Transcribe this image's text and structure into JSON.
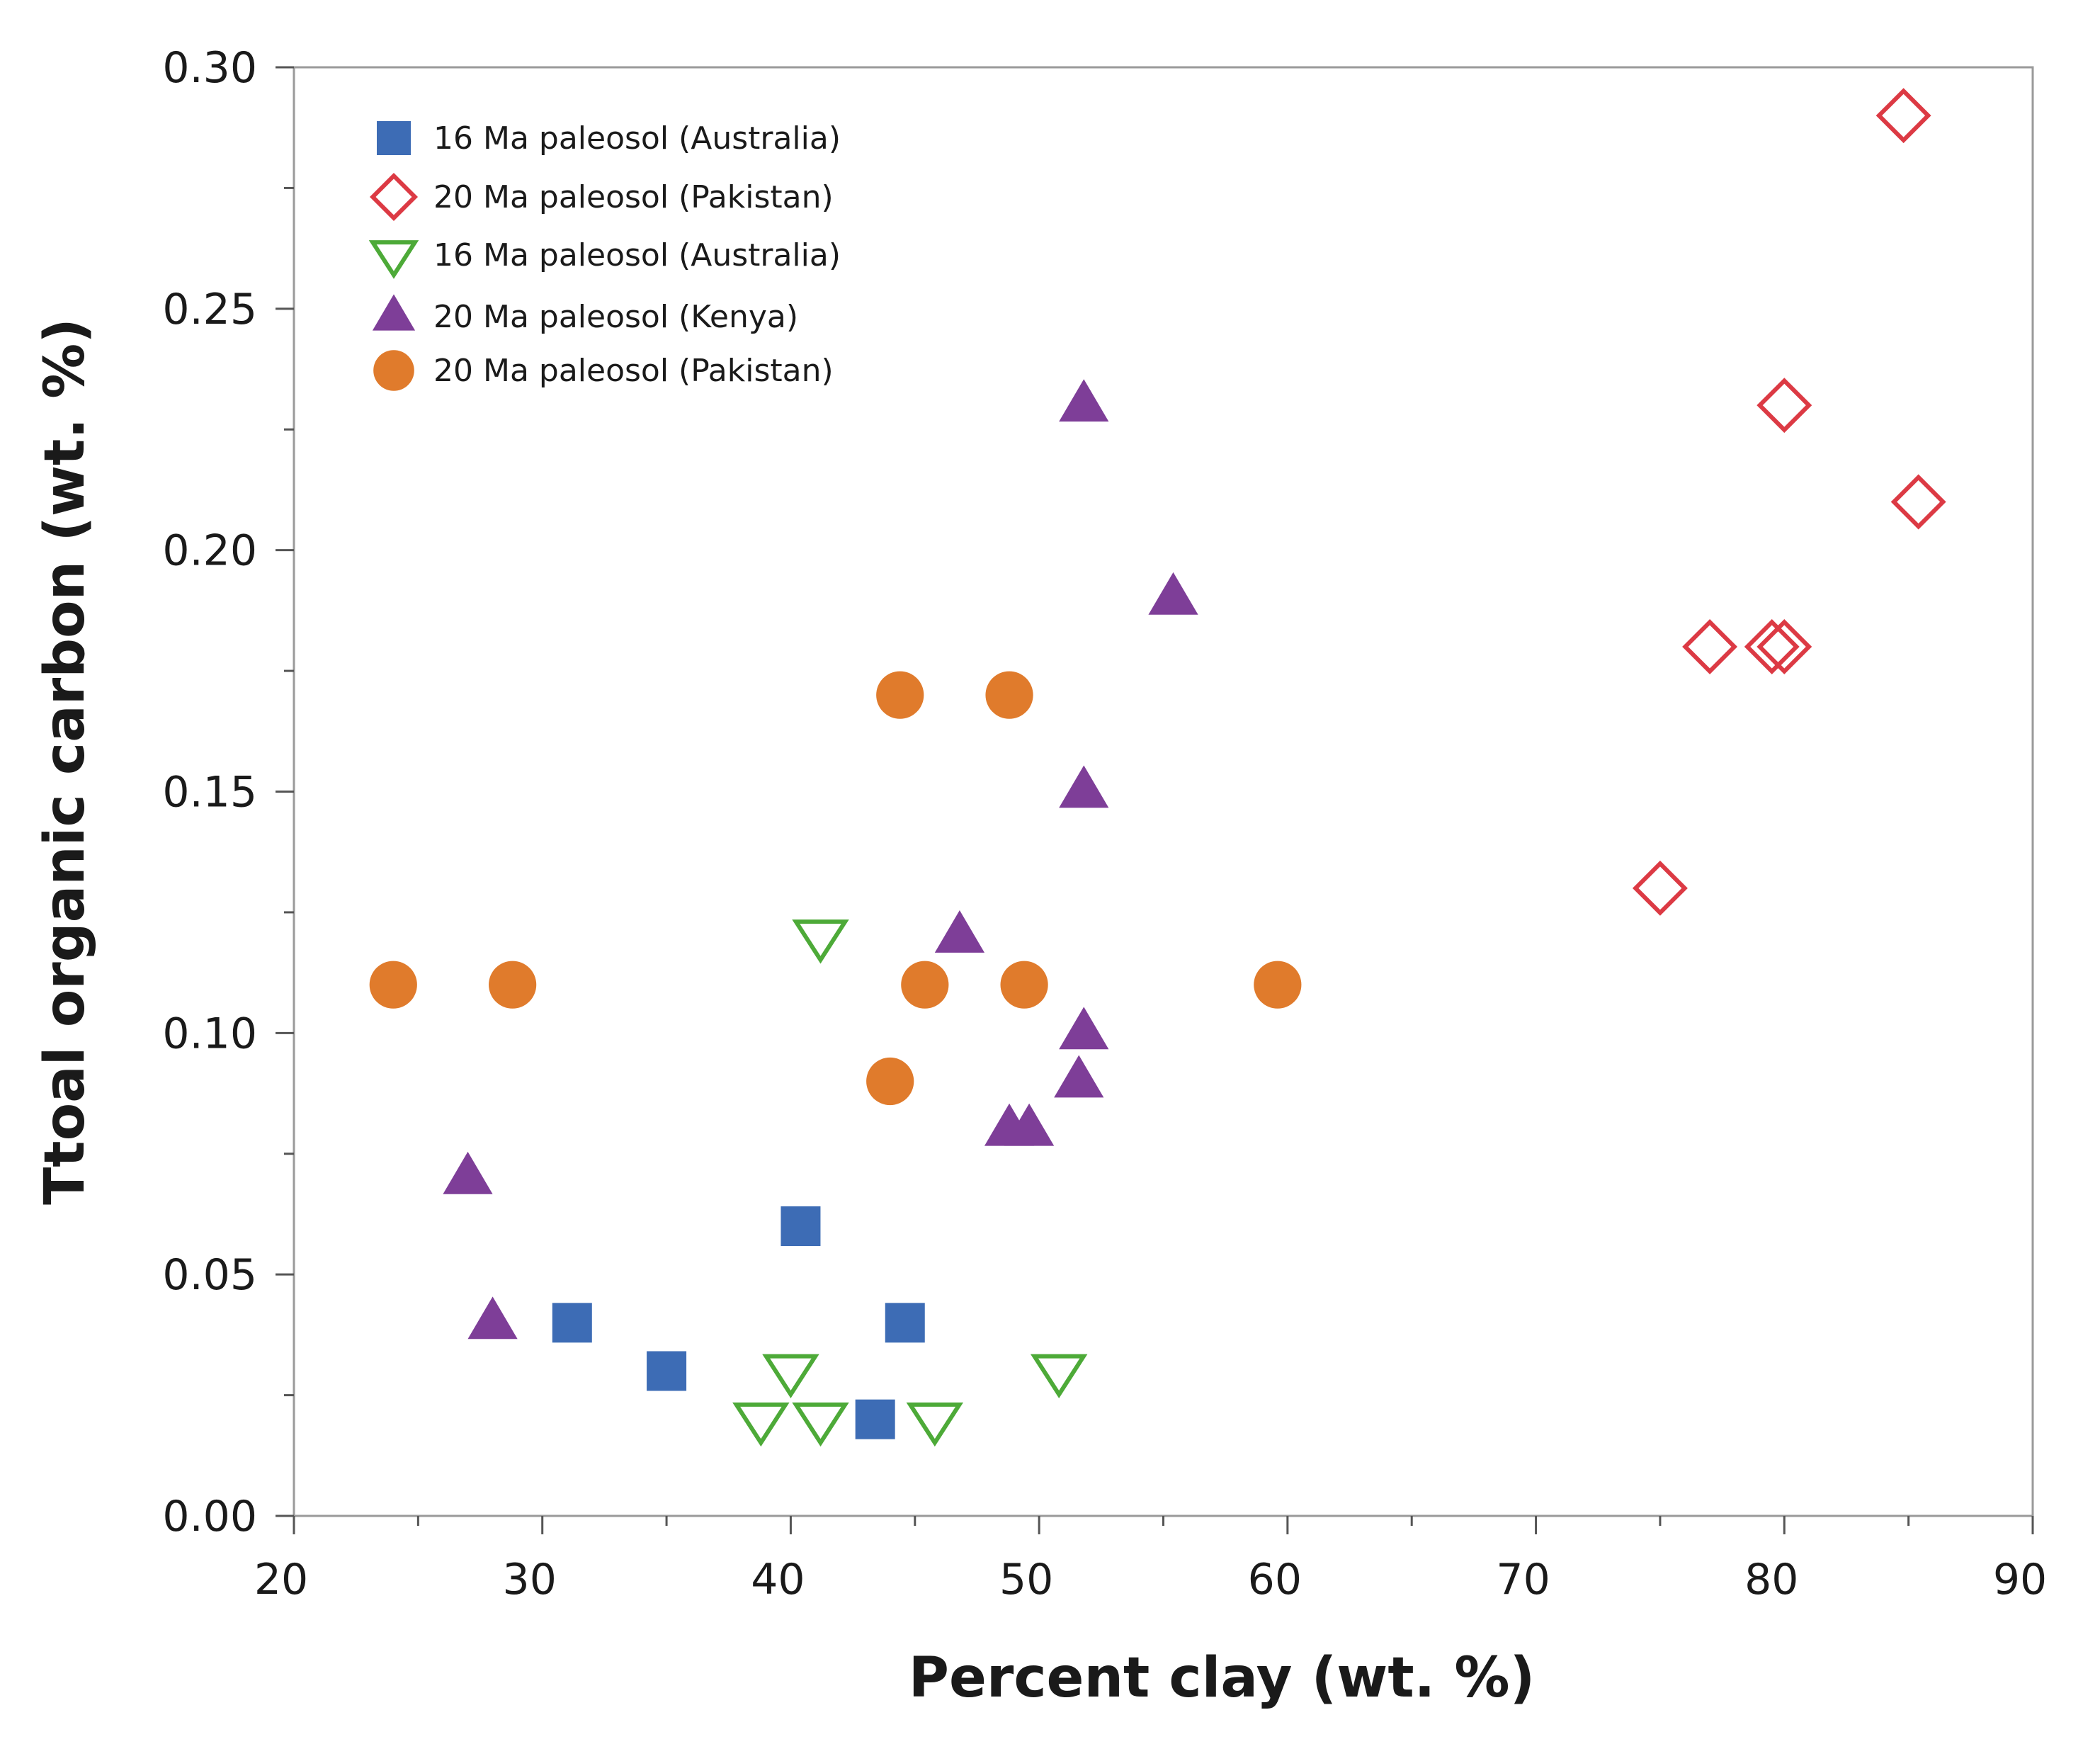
{
  "chart_data": {
    "type": "scatter",
    "xlabel": "Percent clay (wt. %)",
    "ylabel": "Ttoal organic carbon (wt. %)",
    "xlim": [
      20,
      90
    ],
    "ylim": [
      0.0,
      0.3
    ],
    "x_ticks": [
      20,
      30,
      40,
      50,
      60,
      70,
      80,
      90
    ],
    "x_tick_labels": [
      "20",
      "30",
      "40",
      "50",
      "60",
      "70",
      "80",
      "90"
    ],
    "y_ticks": [
      0.0,
      0.05,
      0.1,
      0.15,
      0.2,
      0.25,
      0.3
    ],
    "y_tick_labels": [
      "0.00",
      "0.05",
      "0.10",
      "0.15",
      "0.20",
      "0.25",
      "0.30"
    ],
    "grid": false,
    "legend_position": "top-left",
    "series": [
      {
        "name": "16 Ma paleosol (Australia)",
        "marker": "square-filled",
        "color": "#3d6cb5",
        "points": [
          [
            31.2,
            0.04
          ],
          [
            35.0,
            0.03
          ],
          [
            40.4,
            0.06
          ],
          [
            43.4,
            0.02
          ],
          [
            44.6,
            0.04
          ]
        ]
      },
      {
        "name": "20 Ma paleosol (Pakistan)",
        "marker": "diamond-open",
        "color": "#dc3a44",
        "points": [
          [
            75.0,
            0.13
          ],
          [
            77.0,
            0.18
          ],
          [
            79.5,
            0.18
          ],
          [
            80.0,
            0.18
          ],
          [
            80.0,
            0.23
          ],
          [
            84.8,
            0.29
          ],
          [
            85.4,
            0.21
          ]
        ]
      },
      {
        "name": "16 Ma paleosol (Australia)",
        "marker": "triangle-down-open",
        "color": "#4daa38",
        "points": [
          [
            38.8,
            0.02
          ],
          [
            40.0,
            0.03
          ],
          [
            41.2,
            0.02
          ],
          [
            41.2,
            0.12
          ],
          [
            45.8,
            0.02
          ],
          [
            50.8,
            0.03
          ]
        ]
      },
      {
        "name": "20 Ma paleosol (Kenya)",
        "marker": "triangle-up-filled",
        "color": "#7e3e98",
        "points": [
          [
            27.0,
            0.07
          ],
          [
            28.0,
            0.04
          ],
          [
            46.8,
            0.12
          ],
          [
            48.8,
            0.08
          ],
          [
            49.6,
            0.08
          ],
          [
            51.6,
            0.09
          ],
          [
            51.8,
            0.1
          ],
          [
            51.8,
            0.15
          ],
          [
            51.8,
            0.23
          ],
          [
            55.4,
            0.19
          ]
        ]
      },
      {
        "name": "20 Ma paleosol (Pakistan)",
        "marker": "circle-filled",
        "color": "#e07b2c",
        "points": [
          [
            24.0,
            0.11
          ],
          [
            28.8,
            0.11
          ],
          [
            44.0,
            0.09
          ],
          [
            44.4,
            0.17
          ],
          [
            45.4,
            0.11
          ],
          [
            48.8,
            0.17
          ],
          [
            49.4,
            0.11
          ],
          [
            59.6,
            0.11
          ]
        ]
      }
    ]
  }
}
